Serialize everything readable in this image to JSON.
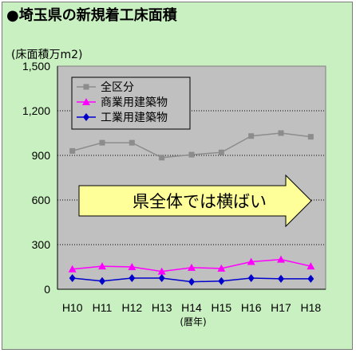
{
  "chart_data": {
    "type": "line",
    "title": "●埼玉県の新規着工床面積",
    "unit_label": "(床面積万m2)",
    "xlabel": "(暦年)",
    "ylim": [
      0,
      1500
    ],
    "yticks": [
      "0",
      "300",
      "600",
      "900",
      "1,200",
      "1,500"
    ],
    "ytick_values": [
      0,
      300,
      600,
      900,
      1200,
      1500
    ],
    "categories": [
      "H10",
      "H11",
      "H12",
      "H13",
      "H14",
      "H15",
      "H16",
      "H17",
      "H18"
    ],
    "grid": true,
    "legend_position": "top-left",
    "series": [
      {
        "name": "全区分",
        "color": "#8c8c8c",
        "marker": "square",
        "values": [
          930,
          985,
          985,
          885,
          905,
          920,
          1030,
          1050,
          1025
        ]
      },
      {
        "name": "商業用建築物",
        "color": "#ff00ff",
        "marker": "triangle",
        "values": [
          135,
          155,
          150,
          120,
          145,
          140,
          185,
          200,
          155
        ]
      },
      {
        "name": "工業用建築物",
        "color": "#0000cc",
        "marker": "diamond",
        "values": [
          75,
          55,
          75,
          75,
          50,
          55,
          75,
          70,
          70
        ]
      }
    ],
    "annotation": "県全体では横ばい"
  }
}
